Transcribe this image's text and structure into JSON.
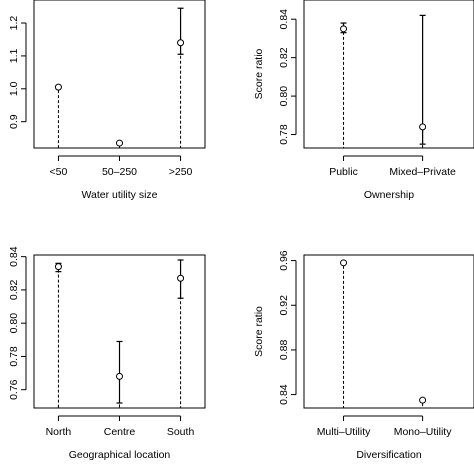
{
  "chart_data": [
    {
      "type": "scatter",
      "xlabel": "Water utility size",
      "ylabel": "",
      "categories": [
        "<50",
        "50–250",
        ">250"
      ],
      "values": [
        1.005,
        0.835,
        1.14
      ],
      "error_low": [
        null,
        null,
        1.105
      ],
      "error_high": [
        null,
        null,
        1.245
      ],
      "ylim": [
        0.82,
        1.27
      ],
      "yticks": [
        0.9,
        1.0,
        1.1,
        1.2
      ],
      "ytick_labels": [
        "0.9",
        "1.0",
        "1.1",
        "1.2"
      ],
      "xlim": [
        0.6,
        3.4
      ]
    },
    {
      "type": "scatter",
      "xlabel": "Ownership",
      "ylabel": "Score ratio",
      "categories": [
        "Public",
        "Mixed–Private"
      ],
      "values": [
        0.835,
        0.784
      ],
      "error_low": [
        0.833,
        0.775
      ],
      "error_high": [
        0.838,
        0.842
      ],
      "ylim": [
        0.773,
        0.85
      ],
      "yticks": [
        0.78,
        0.8,
        0.82,
        0.84
      ],
      "ytick_labels": [
        "0.78",
        "0.80",
        "0.82",
        "0.84"
      ],
      "xlim": [
        0.5,
        2.65
      ]
    },
    {
      "type": "scatter",
      "xlabel": "Geographical location",
      "ylabel": "",
      "categories": [
        "North",
        "Centre",
        "South"
      ],
      "values": [
        0.834,
        0.768,
        0.827
      ],
      "error_low": [
        0.831,
        0.752,
        0.815
      ],
      "error_high": [
        0.836,
        0.789,
        0.838
      ],
      "ylim": [
        0.749,
        0.841
      ],
      "yticks": [
        0.76,
        0.78,
        0.8,
        0.82,
        0.84
      ],
      "ytick_labels": [
        "0.76",
        "0.78",
        "0.80",
        "0.82",
        "0.84"
      ],
      "xlim": [
        0.6,
        3.4
      ]
    },
    {
      "type": "scatter",
      "xlabel": "Diversification",
      "ylabel": "Score ratio",
      "categories": [
        "Multi–Utility",
        "Mono–Utility"
      ],
      "values": [
        0.958,
        0.835
      ],
      "error_low": [
        null,
        null
      ],
      "error_high": [
        null,
        null
      ],
      "ylim": [
        0.828,
        0.965
      ],
      "yticks": [
        0.84,
        0.88,
        0.92,
        0.96
      ],
      "ytick_labels": [
        "0.84",
        "0.88",
        "0.92",
        "0.96"
      ],
      "xlim": [
        0.5,
        2.65
      ]
    }
  ]
}
